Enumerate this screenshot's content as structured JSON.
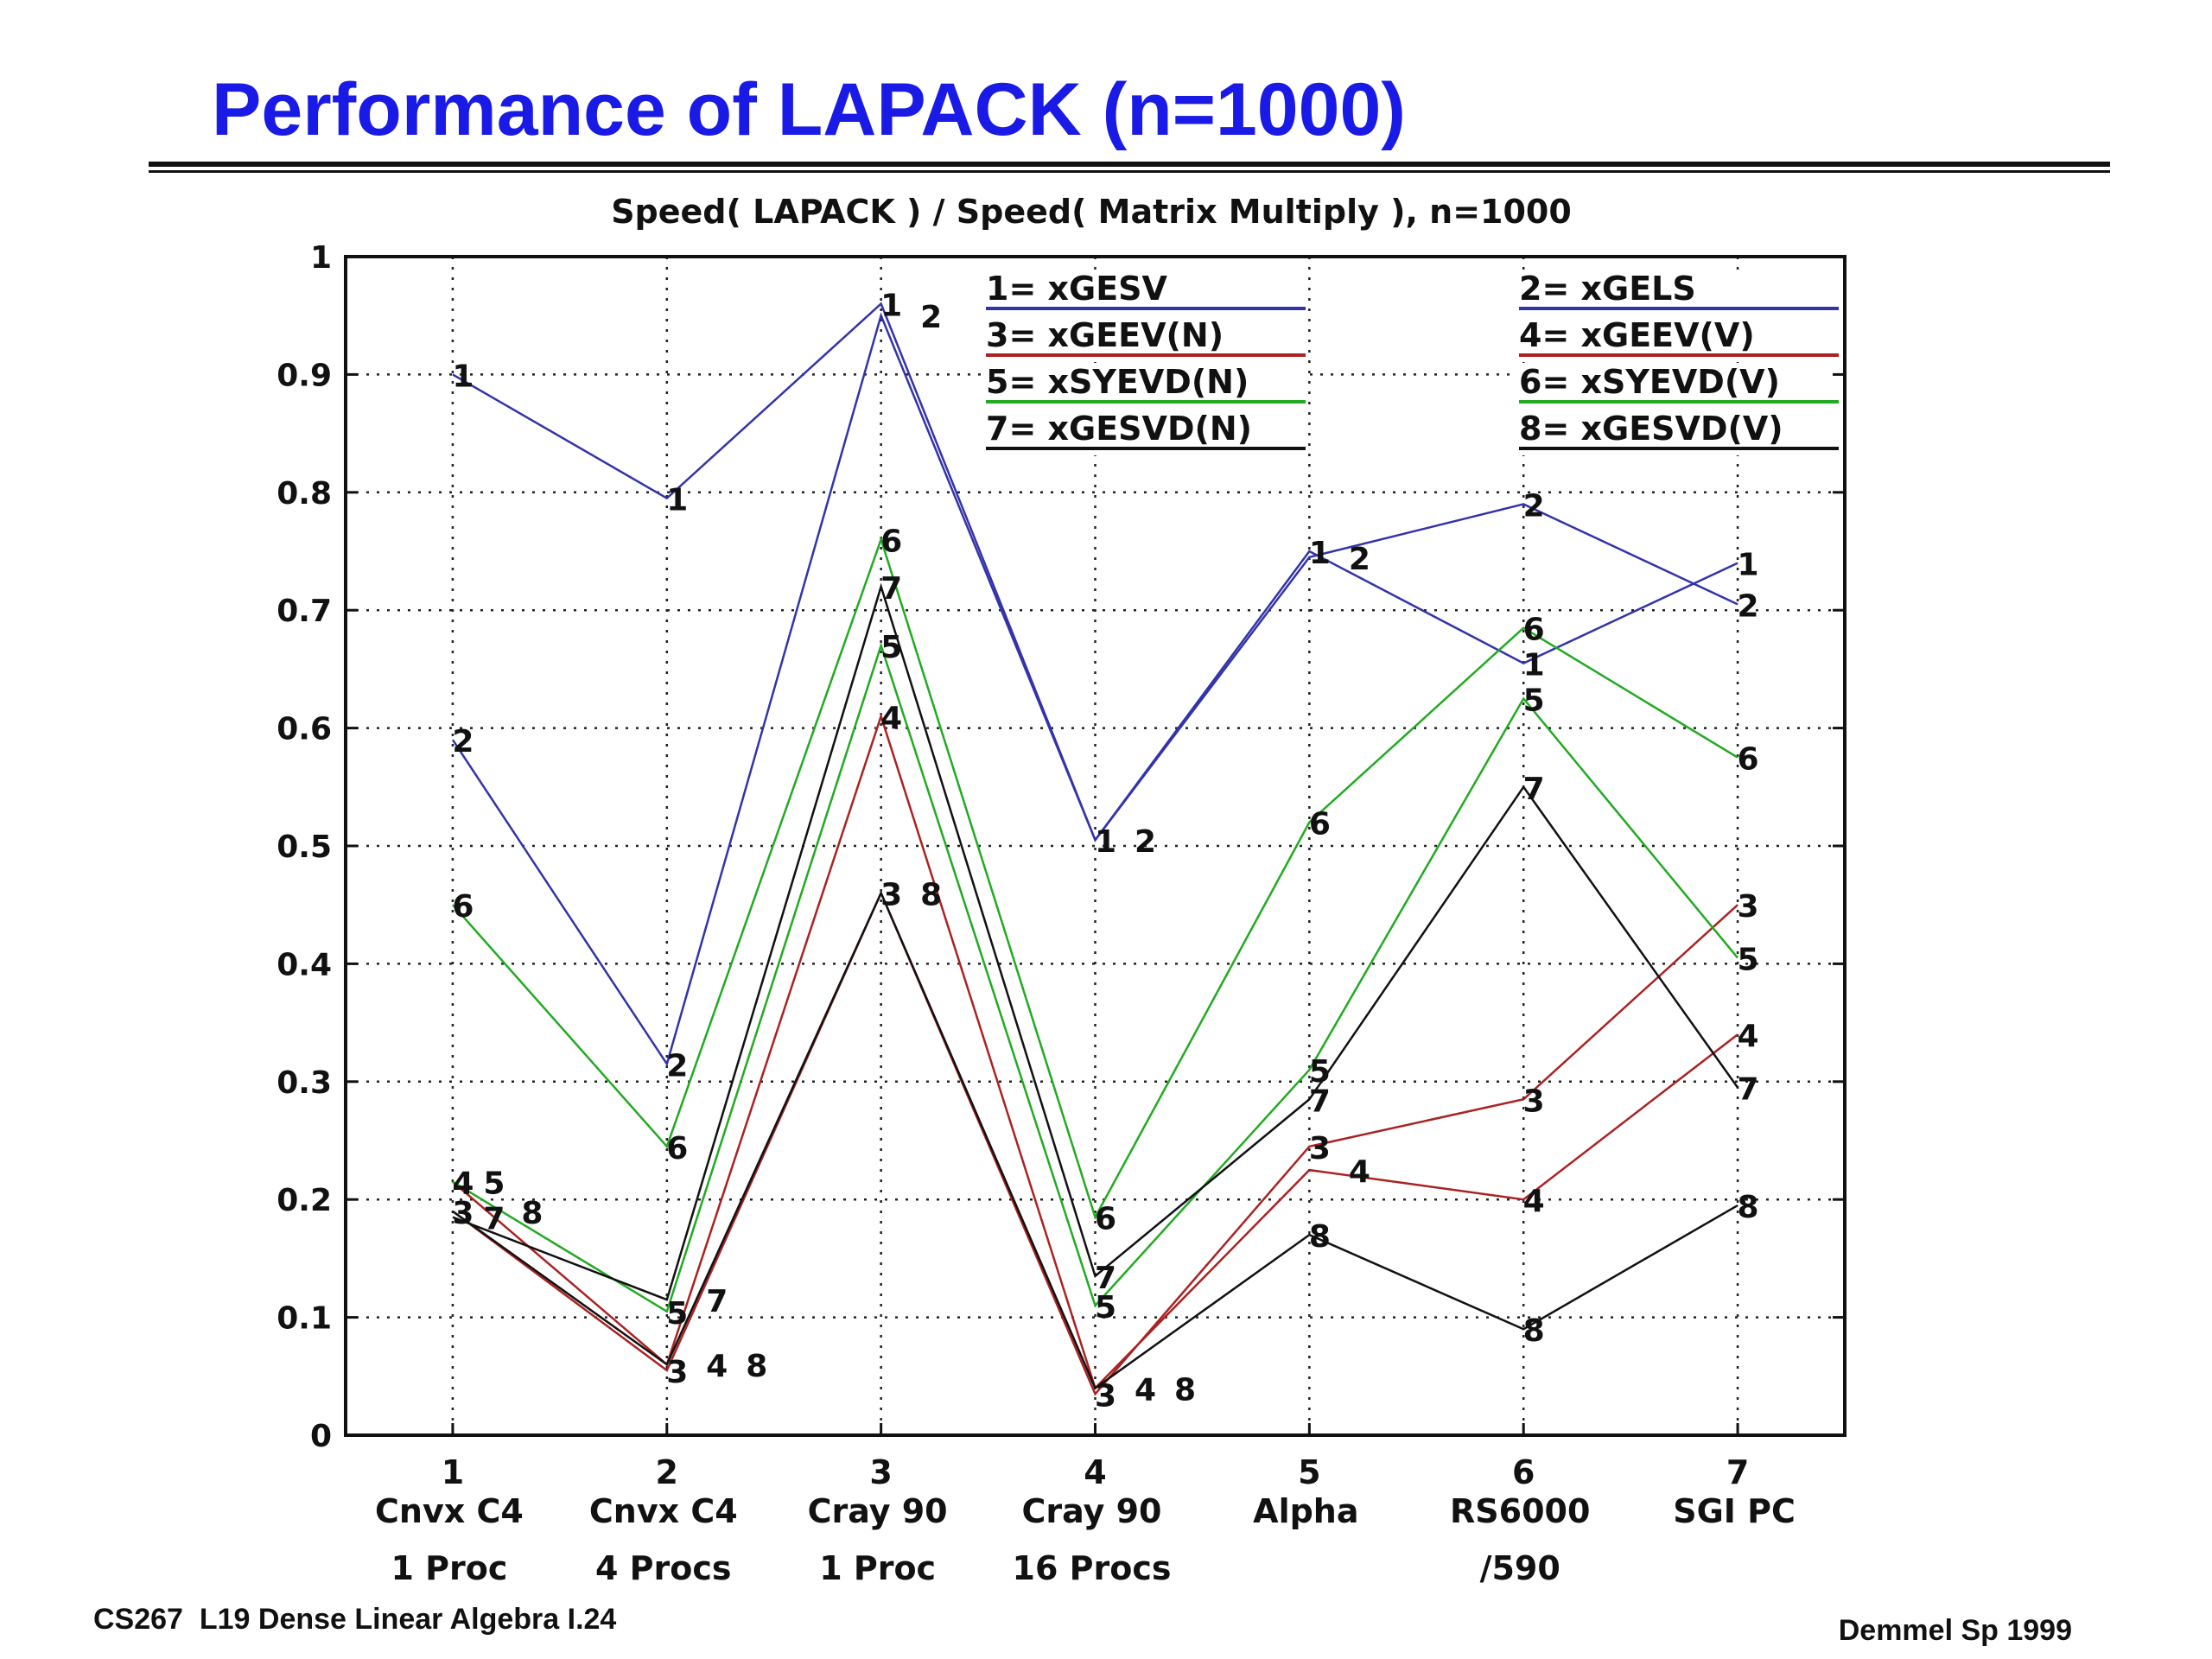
{
  "slide": {
    "title": "Performance of LAPACK (n=1000)",
    "footer_left": "CS267  L19 Dense Linear Algebra I.24",
    "footer_right": "Demmel Sp 1999",
    "title_color": "#1a1ae6"
  },
  "chart_data": {
    "type": "line",
    "title": "Speed( LAPACK ) / Speed( Matrix Multiply ), n=1000",
    "xlabel": "",
    "ylabel": "",
    "x": [
      1,
      2,
      3,
      4,
      5,
      6,
      7
    ],
    "xlim": [
      0.5,
      7.5
    ],
    "ylim": [
      0,
      1
    ],
    "grid": true,
    "legend_position": "top",
    "yticks": [
      "0",
      "0.1",
      "0.2",
      "0.3",
      "0.4",
      "0.5",
      "0.6",
      "0.7",
      "0.8",
      "0.9",
      "1"
    ],
    "xtick_numbers": [
      "1",
      "2",
      "3",
      "4",
      "5",
      "6",
      "7"
    ],
    "xtick_line2": [
      "Cnvx C4",
      "Cnvx C4",
      "Cray 90",
      "Cray 90",
      "Alpha",
      "RS6000",
      "SGI PC"
    ],
    "xtick_line3": [
      "1 Proc",
      "4 Procs",
      "1 Proc",
      "16 Procs",
      "",
      "/590",
      ""
    ],
    "series": [
      {
        "name": "xGESV",
        "marker": "1",
        "color": "#3333aa",
        "values": [
          0.9,
          0.795,
          0.96,
          0.505,
          0.75,
          0.655,
          0.74
        ]
      },
      {
        "name": "xGELS",
        "marker": "2",
        "color": "#3333aa",
        "values": [
          0.59,
          0.315,
          0.95,
          0.505,
          0.745,
          0.79,
          0.705
        ]
      },
      {
        "name": "xGEEV(N)",
        "marker": "3",
        "color": "#aa2222",
        "values": [
          0.19,
          0.055,
          0.46,
          0.035,
          0.245,
          0.285,
          0.45
        ]
      },
      {
        "name": "xGEEV(V)",
        "marker": "4",
        "color": "#aa2222",
        "values": [
          0.215,
          0.06,
          0.61,
          0.04,
          0.225,
          0.2,
          0.34
        ]
      },
      {
        "name": "xSYEVD(N)",
        "marker": "5",
        "color": "#22aa22",
        "values": [
          0.215,
          0.105,
          0.67,
          0.11,
          0.31,
          0.625,
          0.405
        ]
      },
      {
        "name": "xSYEVD(V)",
        "marker": "6",
        "color": "#22aa22",
        "values": [
          0.45,
          0.245,
          0.76,
          0.185,
          0.52,
          0.685,
          0.575
        ]
      },
      {
        "name": "xGESVD(N)",
        "marker": "7",
        "color": "#111111",
        "values": [
          0.185,
          0.115,
          0.72,
          0.135,
          0.285,
          0.55,
          0.295
        ]
      },
      {
        "name": "xGESVD(V)",
        "marker": "8",
        "color": "#111111",
        "values": [
          0.19,
          0.06,
          0.46,
          0.04,
          0.17,
          0.09,
          0.195
        ]
      }
    ]
  }
}
